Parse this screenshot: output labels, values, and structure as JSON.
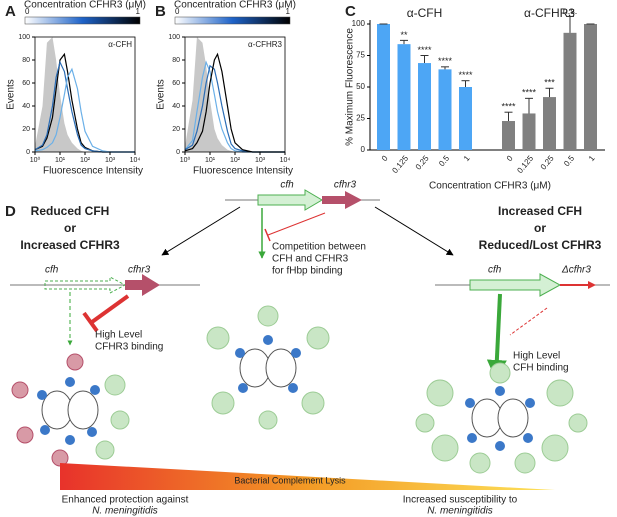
{
  "chart_data": [
    {
      "type": "line",
      "panel": "A",
      "annotation": "α-CFH",
      "colorbar": {
        "label": "Concentration CFHR3 (μM)",
        "range": [
          0,
          1
        ]
      },
      "xlabel": "Fluorescence Intensity",
      "ylabel": "Events",
      "log_x": true,
      "x": [
        1,
        2,
        3,
        5,
        7,
        10,
        15,
        20,
        30,
        50,
        70,
        100,
        200,
        500,
        1000,
        10000
      ],
      "xlim": [
        1,
        10000
      ],
      "xticks": [
        {
          "value": 1,
          "label": "10⁰"
        },
        {
          "value": 10,
          "label": "10¹"
        },
        {
          "value": 100,
          "label": "10²"
        },
        {
          "value": 1000,
          "label": "10³"
        },
        {
          "value": 10000,
          "label": "10⁴"
        }
      ],
      "ylim": [
        0,
        100
      ],
      "yticks": [
        0,
        20,
        40,
        60,
        80,
        100
      ],
      "series": [
        {
          "color": "#c8c8c8",
          "fill": true,
          "values": [
            5,
            40,
            95,
            100,
            80,
            50,
            25,
            15,
            8,
            3,
            1,
            0,
            0,
            0,
            0,
            0
          ]
        },
        {
          "color": "#000000",
          "values": [
            2,
            5,
            12,
            30,
            55,
            80,
            85,
            70,
            45,
            20,
            8,
            4,
            1,
            0,
            0,
            0
          ]
        },
        {
          "color": "#2a6cb5",
          "values": [
            2,
            6,
            15,
            40,
            65,
            78,
            70,
            55,
            35,
            15,
            6,
            3,
            1,
            0,
            0,
            0
          ]
        },
        {
          "color": "#6bb0e8",
          "values": [
            1,
            2,
            4,
            8,
            15,
            30,
            50,
            65,
            72,
            55,
            35,
            18,
            5,
            1,
            0,
            0
          ]
        }
      ]
    },
    {
      "type": "line",
      "panel": "B",
      "annotation": "α-CFHR3",
      "colorbar": {
        "label": "Concentration CFHR3 (μM)",
        "range": [
          0,
          1
        ]
      },
      "xlabel": "Fluorescence Intensity",
      "ylabel": "Events",
      "log_x": true,
      "x": [
        1,
        2,
        3,
        5,
        7,
        10,
        15,
        20,
        30,
        50,
        70,
        100,
        200,
        500,
        1000,
        10000
      ],
      "xlim": [
        1,
        10000
      ],
      "xticks": [
        {
          "value": 1,
          "label": "10⁰"
        },
        {
          "value": 10,
          "label": "10¹"
        },
        {
          "value": 100,
          "label": "10²"
        },
        {
          "value": 1000,
          "label": "10³"
        },
        {
          "value": 10000,
          "label": "10⁴"
        }
      ],
      "ylim": [
        0,
        100
      ],
      "yticks": [
        0,
        20,
        40,
        60,
        80,
        100
      ],
      "series": [
        {
          "color": "#c8c8c8",
          "fill": true,
          "values": [
            5,
            45,
            100,
            95,
            75,
            45,
            20,
            12,
            6,
            2,
            1,
            0,
            0,
            0,
            0,
            0
          ]
        },
        {
          "color": "#6bb0e8",
          "values": [
            2,
            10,
            35,
            65,
            78,
            70,
            50,
            35,
            20,
            8,
            3,
            1,
            0,
            0,
            0,
            0
          ]
        },
        {
          "color": "#2a6cb5",
          "values": [
            2,
            6,
            18,
            40,
            60,
            75,
            72,
            60,
            40,
            18,
            7,
            3,
            1,
            0,
            0,
            0
          ]
        },
        {
          "color": "#000000",
          "values": [
            1,
            3,
            8,
            18,
            35,
            60,
            80,
            85,
            70,
            40,
            20,
            8,
            2,
            0,
            0,
            0
          ]
        }
      ]
    },
    {
      "type": "bar",
      "panel": "C",
      "ylabel": "% Maximum Fluorescence",
      "xlabel": "Concentration CFHR3 (μM)",
      "ylim": [
        0,
        100
      ],
      "yticks": [
        0,
        25,
        50,
        75,
        100
      ],
      "groups": [
        {
          "name": "α-CFH",
          "color": "#4da6f5",
          "categories": [
            "0",
            "0.125",
            "0.25",
            "0.5",
            "1"
          ],
          "values": [
            100,
            84,
            69,
            64,
            50
          ],
          "errors": [
            0,
            3,
            6,
            2,
            5
          ],
          "annotations": [
            null,
            "**",
            "****",
            "****",
            "****"
          ]
        },
        {
          "name": "α-CFHR3",
          "color": "#808080",
          "categories": [
            "0",
            "0.125",
            "0.25",
            "0.5",
            "1"
          ],
          "values": [
            23,
            29,
            42,
            93,
            100
          ],
          "errors": [
            7,
            12,
            7,
            13,
            0
          ],
          "annotations": [
            "****",
            "****",
            "***",
            "n.s.",
            null
          ]
        }
      ]
    }
  ],
  "diagram": {
    "panel": "D",
    "left": {
      "title": [
        "Reduced CFH",
        "or",
        "Increased CFHR3"
      ],
      "genes": [
        "cfh",
        "cfhr3"
      ],
      "note": [
        "High Level",
        "CFHR3 binding"
      ]
    },
    "center": {
      "genes": [
        "cfh",
        "cfhr3"
      ],
      "note": [
        "Competition between",
        "CFH and CFHR3",
        "for fHbp binding"
      ]
    },
    "right": {
      "title": [
        "Increased CFH",
        "or",
        "Reduced/Lost CFHR3"
      ],
      "genes": [
        "cfh",
        "Δcfhr3"
      ],
      "note": [
        "High Level",
        "CFH binding"
      ]
    },
    "lysis": "Bacterial Complement Lysis",
    "outcomes": [
      [
        "Enhanced protection against",
        "N. meningitidis"
      ],
      [
        "Increased susceptibility to",
        "N. meningitidis"
      ]
    ]
  }
}
